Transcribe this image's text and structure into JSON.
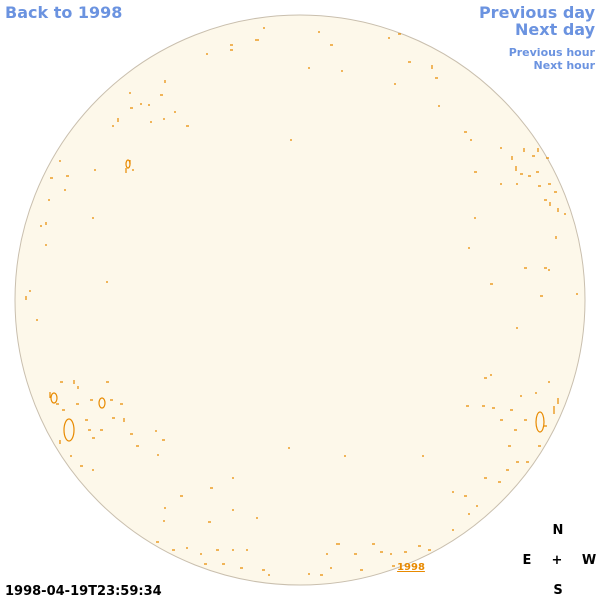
{
  "nav": {
    "back": "Back to 1998",
    "previous_day": "Previous day",
    "next_day": "Next day",
    "previous_hour": "Previous hour",
    "next_hour": "Next hour"
  },
  "timestamp": "1998-04-19T23:59:34",
  "compass": {
    "north": "N",
    "east": "E",
    "center": "+",
    "west": "W",
    "south": "S"
  },
  "year_link": "1998"
}
